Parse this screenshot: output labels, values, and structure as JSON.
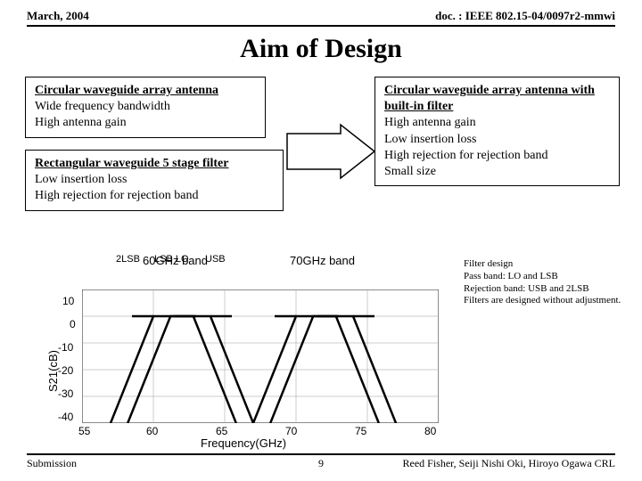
{
  "header": {
    "left": "March, 2004",
    "right": "doc. : IEEE 802.15-04/0097r2-mmwi"
  },
  "title": "Aim of Design",
  "box_left_top": {
    "heading": "Circular waveguide array antenna",
    "lines": [
      "Wide frequency bandwidth",
      "High antenna gain"
    ]
  },
  "box_left_bottom": {
    "heading": "Rectangular waveguide 5 stage filter",
    "lines": [
      "Low insertion loss",
      "High rejection for rejection band"
    ]
  },
  "box_right": {
    "heading": "Circular waveguide array antenna with built-in filter",
    "lines": [
      "High antenna gain",
      "Low insertion loss",
      "High rejection for rejection band",
      "Small size"
    ]
  },
  "filter_note": {
    "lines": [
      "Filter design",
      "Pass band: LO and LSB",
      "Rejection band: USB and 2LSB",
      "Filters are designed without adjustment."
    ]
  },
  "chart": {
    "band60": "60GHz band",
    "band70": "70GHz band",
    "sub_labels": [
      "2LSB",
      "LSB LO",
      "USB"
    ],
    "ylabel": "S21(cB)",
    "yticks": [
      "10",
      "0",
      "-10",
      "-20",
      "-30",
      "-40"
    ],
    "xlabel": "Frequency(GHz)",
    "xticks": [
      "55",
      "60",
      "65",
      "70",
      "75",
      "80"
    ],
    "x_range": [
      55,
      80
    ],
    "y_range": [
      -40,
      10
    ],
    "grid_color": "#999999",
    "curve_color": "#000000",
    "bg": "#ffffff",
    "dash_y": 0,
    "dash_segments": [
      [
        58.5,
        60
      ],
      [
        61.5,
        63
      ],
      [
        64,
        65.5
      ],
      [
        68.5,
        70
      ],
      [
        71.5,
        73
      ],
      [
        74,
        75.5
      ]
    ],
    "filters": [
      {
        "points": [
          [
            57,
            -40
          ],
          [
            60,
            0
          ],
          [
            62.8,
            0
          ],
          [
            65.8,
            -40
          ]
        ]
      },
      {
        "points": [
          [
            58.2,
            -40
          ],
          [
            61.2,
            0
          ],
          [
            64,
            0
          ],
          [
            67,
            -40
          ]
        ]
      },
      {
        "points": [
          [
            67,
            -40
          ],
          [
            70,
            0
          ],
          [
            72.8,
            0
          ],
          [
            75.8,
            -40
          ]
        ]
      },
      {
        "points": [
          [
            68.2,
            -40
          ],
          [
            71.2,
            0
          ],
          [
            74,
            0
          ],
          [
            77,
            -40
          ]
        ]
      }
    ]
  },
  "footer": {
    "left": "Submission",
    "right": "Reed Fisher, Seiji Nishi Oki, Hiroyo Ogawa  CRL",
    "page": "9"
  }
}
